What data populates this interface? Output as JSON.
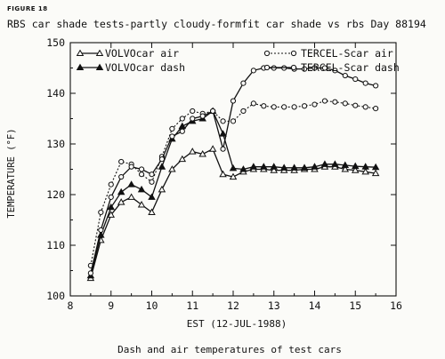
{
  "figure_label": "FIGURE 18",
  "chart_data": {
    "type": "line",
    "title": "RBS car shade tests-partly cloudy-formfit car shade vs rbs Day 88194",
    "xlabel": "EST (12-JUL-1988)",
    "ylabel": "TEMPERATURE (°F)",
    "caption": "Dash and air temperatures of test cars",
    "xlim": [
      8,
      16
    ],
    "ylim": [
      100,
      150
    ],
    "xticks": [
      8,
      9,
      10,
      11,
      12,
      13,
      14,
      15,
      16
    ],
    "yticks": [
      100,
      110,
      120,
      130,
      140,
      150
    ],
    "grid": false,
    "legend_placement": "inside-top",
    "series": [
      {
        "name": "VOLVOcar air",
        "marker": "open-triangle",
        "line": "solid",
        "x": [
          8.5,
          8.75,
          9.0,
          9.25,
          9.5,
          9.75,
          10.0,
          10.25,
          10.5,
          10.75,
          11.0,
          11.25,
          11.5,
          11.75,
          12.0,
          12.25,
          12.5,
          12.75,
          13.0,
          13.25,
          13.5,
          13.75,
          14.0,
          14.25,
          14.5,
          14.75,
          15.0,
          15.25,
          15.5
        ],
        "y": [
          103.5,
          111.0,
          116.0,
          118.5,
          119.5,
          118.0,
          116.5,
          121.0,
          125.0,
          127.0,
          128.5,
          128.0,
          129.0,
          124.0,
          123.5,
          124.5,
          125.0,
          125.0,
          124.8,
          124.8,
          124.8,
          125.0,
          125.0,
          125.5,
          125.5,
          125.0,
          124.8,
          124.5,
          124.2
        ]
      },
      {
        "name": "VOLVOcar dash",
        "marker": "filled-triangle",
        "line": "solid",
        "x": [
          8.5,
          8.75,
          9.0,
          9.25,
          9.5,
          9.75,
          10.0,
          10.25,
          10.5,
          10.75,
          11.0,
          11.25,
          11.5,
          11.75,
          12.0,
          12.25,
          12.5,
          12.75,
          13.0,
          13.25,
          13.5,
          13.75,
          14.0,
          14.25,
          14.5,
          14.75,
          15.0,
          15.25,
          15.5
        ],
        "y": [
          104.0,
          112.0,
          117.5,
          120.5,
          122.0,
          121.0,
          119.5,
          125.5,
          131.0,
          133.5,
          134.5,
          135.0,
          136.5,
          132.0,
          125.2,
          125.0,
          125.5,
          125.5,
          125.5,
          125.3,
          125.3,
          125.3,
          125.5,
          126.0,
          126.0,
          125.8,
          125.6,
          125.5,
          125.4
        ]
      },
      {
        "name": "TERCEL-Scar air",
        "marker": "open-circle",
        "line": "dotted",
        "x": [
          8.5,
          8.75,
          9.0,
          9.25,
          9.5,
          9.75,
          10.0,
          10.25,
          10.5,
          10.75,
          11.0,
          11.25,
          11.5,
          11.75,
          12.0,
          12.25,
          12.5,
          12.75,
          13.0,
          13.25,
          13.5,
          13.75,
          14.0,
          14.25,
          14.5,
          14.75,
          15.0,
          15.25,
          15.5
        ],
        "y": [
          106.0,
          116.5,
          122.0,
          126.5,
          126.0,
          124.0,
          122.5,
          127.5,
          133.0,
          135.0,
          136.5,
          136.0,
          136.5,
          134.5,
          134.5,
          136.5,
          138.0,
          137.5,
          137.3,
          137.3,
          137.3,
          137.5,
          137.8,
          138.5,
          138.3,
          138.0,
          137.6,
          137.3,
          137.0
        ]
      },
      {
        "name": "TERCEL-Scar dash",
        "marker": "open-circle",
        "line": "solid",
        "x": [
          8.5,
          8.75,
          9.0,
          9.25,
          9.5,
          9.75,
          10.0,
          10.25,
          10.5,
          10.75,
          11.0,
          11.25,
          11.5,
          11.75,
          12.0,
          12.25,
          12.5,
          12.75,
          13.0,
          13.25,
          13.5,
          13.75,
          14.0,
          14.25,
          14.5,
          14.75,
          15.0,
          15.25,
          15.5
        ],
        "y": [
          104.5,
          113.0,
          119.5,
          123.5,
          125.5,
          125.0,
          124.0,
          127.0,
          131.5,
          132.5,
          135.0,
          135.5,
          136.5,
          129.0,
          138.5,
          142.0,
          144.5,
          145.0,
          145.0,
          145.0,
          144.8,
          144.8,
          145.0,
          145.0,
          144.5,
          143.5,
          142.8,
          142.0,
          141.5
        ]
      }
    ]
  }
}
